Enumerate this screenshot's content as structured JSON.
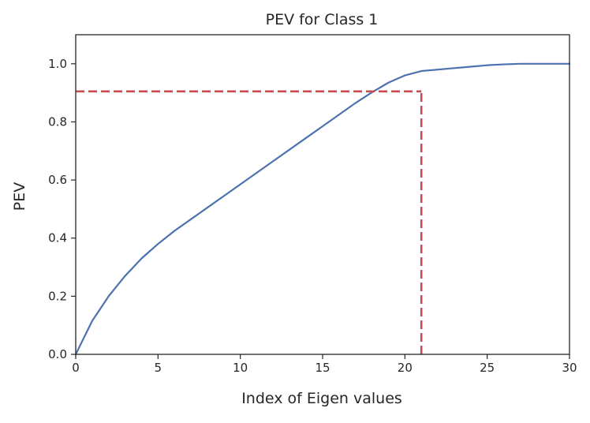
{
  "chart_data": {
    "type": "line",
    "title": "PEV for Class 1",
    "xlabel": "Index of Eigen values",
    "ylabel": "PEV",
    "xlim": [
      0,
      30
    ],
    "ylim": [
      0,
      1.1
    ],
    "xticks": [
      0,
      5,
      10,
      15,
      20,
      25,
      30
    ],
    "xtick_labels": [
      "0",
      "5",
      "10",
      "15",
      "20",
      "25",
      "30"
    ],
    "yticks": [
      0.0,
      0.2,
      0.4,
      0.6,
      0.8,
      1.0
    ],
    "ytick_labels": [
      "0.0",
      "0.2",
      "0.4",
      "0.6",
      "0.8",
      "1.0"
    ],
    "grid": false,
    "series": [
      {
        "color": "#4c72b0",
        "x": [
          0,
          1,
          2,
          3,
          4,
          5,
          6,
          7,
          8,
          9,
          10,
          11,
          12,
          13,
          14,
          15,
          16,
          17,
          18,
          19,
          20,
          21,
          22,
          23,
          24,
          25,
          26,
          27,
          28,
          29,
          30
        ],
        "y": [
          0.0,
          0.115,
          0.2,
          0.27,
          0.33,
          0.38,
          0.425,
          0.465,
          0.505,
          0.545,
          0.585,
          0.625,
          0.665,
          0.705,
          0.745,
          0.785,
          0.825,
          0.865,
          0.902,
          0.935,
          0.96,
          0.975,
          0.98,
          0.985,
          0.99,
          0.995,
          0.998,
          1.0,
          1.0,
          1.0,
          1.0
        ]
      }
    ],
    "reference_lines": [
      {
        "orientation": "horizontal",
        "y": 0.905,
        "x_from": 0,
        "x_to": 21,
        "color": "#c44e52",
        "style": "dashed"
      },
      {
        "orientation": "vertical",
        "x": 21,
        "y_from": 0,
        "y_to": 0.905,
        "color": "#c44e52",
        "style": "dashed"
      }
    ]
  }
}
